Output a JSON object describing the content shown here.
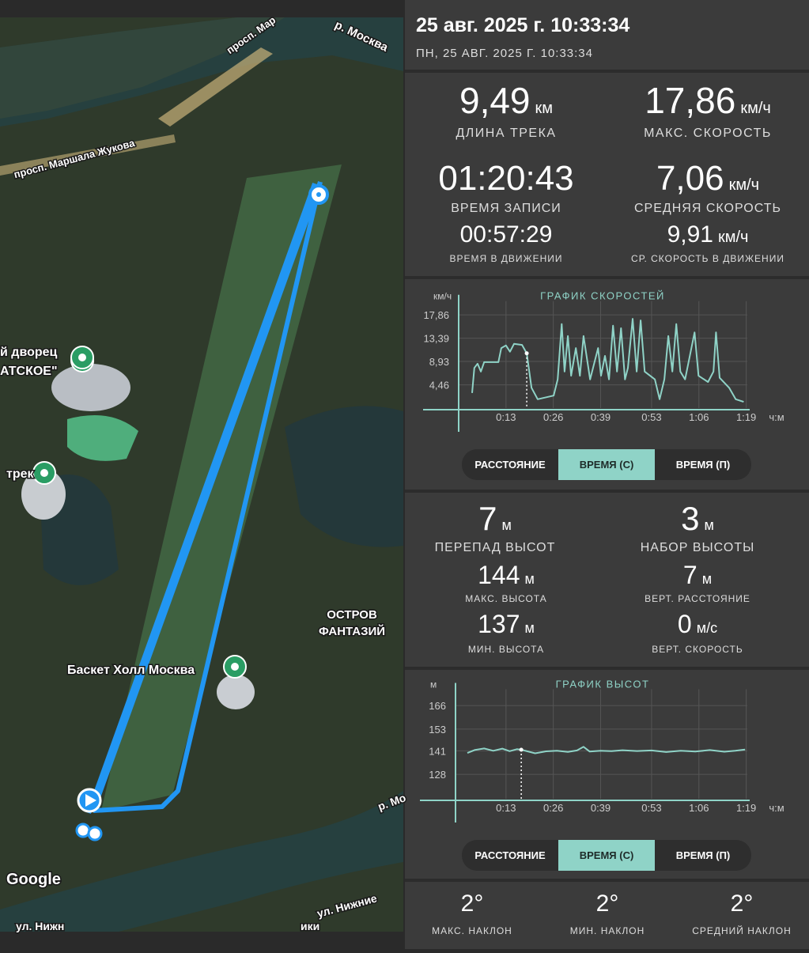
{
  "map": {
    "labels": [
      "р. Москва",
      "просп. Мар",
      "просп. Маршала Жукова",
      "й дворец",
      "АТСКОЕ\"",
      "трек",
      "Баскет Холл Москва",
      "ОСТРОВ",
      "ФАНТАЗИЙ",
      "р. Мо",
      "ул. Нижние",
      "ул. Нижн",
      "ики",
      "Google"
    ]
  },
  "header": {
    "title": "25 авг. 2025 г. 10:33:34",
    "subtitle": "ПН, 25 АВГ. 2025 Г. 10:33:34"
  },
  "track_stats": [
    {
      "value": "9,49",
      "unit": "км",
      "label": "ДЛИНА ТРЕКА"
    },
    {
      "value": "17,86",
      "unit": "км/ч",
      "label": "МАКС. СКОРОСТЬ"
    },
    {
      "value": "01:20:43",
      "label": "ВРЕМЯ ЗАПИСИ"
    },
    {
      "value": "7,06",
      "unit": "км/ч",
      "label": "СРЕДНЯЯ СКОРОСТЬ"
    },
    {
      "value": "00:57:29",
      "label": "ВРЕМЯ В ДВИЖЕНИИ"
    },
    {
      "value": "9,91",
      "unit": "км/ч",
      "label": "СР. СКОРОСТЬ В ДВИЖЕНИИ"
    }
  ],
  "speed_chart": {
    "type": "line",
    "title": "ГРАФИК СКОРОСТЕЙ",
    "y_unit": "км/ч",
    "x_unit": "ч:м",
    "color": "#8fd3c7",
    "x": [
      3.7,
      4.3,
      5.2,
      6.1,
      7.0,
      10.9,
      11.7,
      13.0,
      14.1,
      15.2,
      17.4,
      18.7,
      20.0,
      21.7,
      26.1,
      27.2,
      28.3,
      29.1,
      30.0,
      30.9,
      32.2,
      33.3,
      34.3,
      36.1,
      38.3,
      39.1,
      40.2,
      41.3,
      42.4,
      43.5,
      44.6,
      45.7,
      46.5,
      47.8,
      48.9,
      50.0,
      51.1,
      53.9,
      55.2,
      56.5,
      57.6,
      58.7,
      59.8,
      60.9,
      62.2,
      64.8,
      65.9,
      68.5,
      70.0,
      70.7,
      71.7,
      74.3,
      76.1,
      78.3
    ],
    "values": [
      2.9,
      7.7,
      8.5,
      7.0,
      8.8,
      8.8,
      11.5,
      12.0,
      10.8,
      12.3,
      12.1,
      10.5,
      3.9,
      1.7,
      2.4,
      5.5,
      16.1,
      7.0,
      13.8,
      6.2,
      11.5,
      6.2,
      13.8,
      5.5,
      11.5,
      6.2,
      10.0,
      5.5,
      15.8,
      7.0,
      15.3,
      5.5,
      7.7,
      17.1,
      7.0,
      16.8,
      7.0,
      5.5,
      1.7,
      5.5,
      13.8,
      7.0,
      16.1,
      7.0,
      5.5,
      14.5,
      6.2,
      5.0,
      7.0,
      14.5,
      5.8,
      3.9,
      1.7,
      1.2
    ],
    "xlim": [
      0,
      79.3
    ],
    "ylim": [
      0,
      20.5
    ],
    "xticks": [
      {
        "value": 13,
        "label": "0:13"
      },
      {
        "value": 26,
        "label": "0:26"
      },
      {
        "value": 39,
        "label": "0:39"
      },
      {
        "value": 53,
        "label": "0:53"
      },
      {
        "value": 66,
        "label": "1:06"
      },
      {
        "value": 79,
        "label": "1:19"
      }
    ],
    "yticks": [
      {
        "value": 4.46,
        "label": "4,46"
      },
      {
        "value": 8.93,
        "label": "8,93"
      },
      {
        "value": 13.39,
        "label": "13,39"
      },
      {
        "value": 17.86,
        "label": "17,86"
      }
    ],
    "grid": true,
    "toggle": [
      "РАССТОЯНИЕ",
      "ВРЕМЯ (С)",
      "ВРЕМЯ (П)"
    ],
    "selected": 1
  },
  "elevation_stats": [
    {
      "value": "7",
      "unit": "м",
      "label": "ПЕРЕПАД ВЫСОТ"
    },
    {
      "value": "3",
      "unit": "м",
      "label": "НАБОР ВЫСОТЫ"
    },
    {
      "value": "144",
      "unit": "м",
      "label": "МАКС. ВЫСОТА"
    },
    {
      "value": "7",
      "unit": "м",
      "label": "ВЕРТ. РАССТОЯНИЕ"
    },
    {
      "value": "137",
      "unit": "м",
      "label": "МИН. ВЫСОТА"
    },
    {
      "value": "0",
      "unit": "м/с",
      "label": "ВЕРТ. СКОРОСТЬ"
    }
  ],
  "elevation_chart": {
    "type": "line",
    "title": "ГРАФИК ВЫСОТ",
    "y_unit": "м",
    "x_unit": "ч:м",
    "color": "#8fd3c7",
    "x": [
      2.4,
      4.5,
      7,
      9.5,
      12,
      14,
      16,
      17.2,
      21,
      24,
      27,
      30,
      32.5,
      34.3,
      36,
      39,
      42,
      45,
      49,
      53,
      57,
      61,
      65,
      69,
      73,
      76,
      78.7
    ],
    "values": [
      139.8,
      141.5,
      142.3,
      141.0,
      142.2,
      140.8,
      141.9,
      141.6,
      139.6,
      140.7,
      141.0,
      140.4,
      141.2,
      143.2,
      140.6,
      141.0,
      140.8,
      141.3,
      140.9,
      141.2,
      140.3,
      141.0,
      140.6,
      141.4,
      140.5,
      141.0,
      141.7
    ],
    "xlim": [
      0,
      79.3
    ],
    "ylim": [
      114.5,
      175
    ],
    "xticks": [
      {
        "value": 13,
        "label": "0:13"
      },
      {
        "value": 26,
        "label": "0:26"
      },
      {
        "value": 39,
        "label": "0:39"
      },
      {
        "value": 53,
        "label": "0:53"
      },
      {
        "value": 66,
        "label": "1:06"
      },
      {
        "value": 79,
        "label": "1:19"
      }
    ],
    "yticks": [
      128,
      141,
      153,
      166
    ],
    "grid": true,
    "toggle": [
      "РАССТОЯНИЕ",
      "ВРЕМЯ (С)",
      "ВРЕМЯ (П)"
    ],
    "selected": 1
  },
  "slope_stats": [
    {
      "value": "2°",
      "label": "МАКС. НАКЛОН"
    },
    {
      "value": "2°",
      "label": "МИН. НАКЛОН"
    },
    {
      "value": "2°",
      "label": "СРЕДНИЙ НАКЛОН"
    }
  ]
}
